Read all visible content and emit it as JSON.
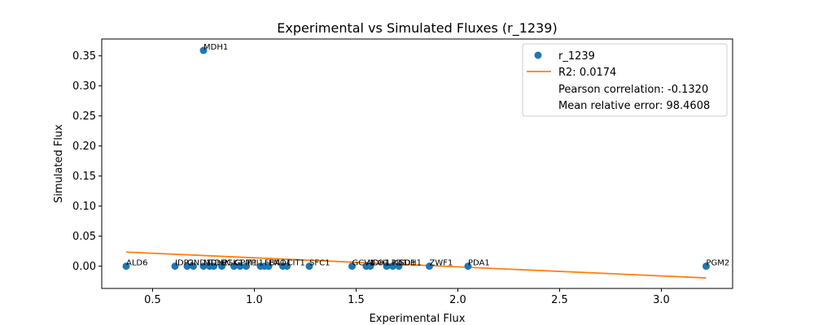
{
  "chart_data": {
    "type": "scatter",
    "title": "Experimental vs Simulated Fluxes (r_1239)",
    "xlabel": "Experimental Flux",
    "ylabel": "Simulated Flux",
    "xlim": [
      0.25,
      3.35
    ],
    "ylim": [
      -0.037,
      0.378
    ],
    "xticks": [
      0.5,
      1.0,
      1.5,
      2.0,
      2.5,
      3.0
    ],
    "xtick_labels": [
      "0.5",
      "1.0",
      "1.5",
      "2.0",
      "2.5",
      "3.0"
    ],
    "yticks": [
      0.0,
      0.05,
      0.1,
      0.15,
      0.2,
      0.25,
      0.3,
      0.35
    ],
    "ytick_labels": [
      "0.00",
      "0.05",
      "0.10",
      "0.15",
      "0.20",
      "0.25",
      "0.30",
      "0.35"
    ],
    "grid": false,
    "legend_position": "top-right",
    "colors": {
      "scatter": "#1f77b4",
      "fit": "#ff7f0e"
    },
    "series": [
      {
        "name": "r_1239",
        "kind": "scatter",
        "points": [
          {
            "x": 0.37,
            "y": 0.0,
            "label": "ALD6"
          },
          {
            "x": 0.61,
            "y": 0.0,
            "label": "IDP2"
          },
          {
            "x": 0.67,
            "y": 0.0,
            "label": "GND1"
          },
          {
            "x": 0.7,
            "y": 0.0,
            "label": ""
          },
          {
            "x": 0.75,
            "y": 0.359,
            "label": "MDH1"
          },
          {
            "x": 0.75,
            "y": 0.0,
            "label": "MDH2"
          },
          {
            "x": 0.78,
            "y": 0.0,
            "label": "TDH1"
          },
          {
            "x": 0.8,
            "y": 0.0,
            "label": ""
          },
          {
            "x": 0.84,
            "y": 0.0,
            "label": "PGK1"
          },
          {
            "x": 0.9,
            "y": 0.0,
            "label": "GPM1"
          },
          {
            "x": 0.93,
            "y": 0.0,
            "label": ""
          },
          {
            "x": 0.96,
            "y": 0.0,
            "label": "TPI1"
          },
          {
            "x": 1.03,
            "y": 0.0,
            "label": ""
          },
          {
            "x": 1.05,
            "y": 0.0,
            "label": "FBA1"
          },
          {
            "x": 1.07,
            "y": 0.0,
            "label": "ENO1"
          },
          {
            "x": 1.14,
            "y": 0.0,
            "label": ""
          },
          {
            "x": 1.16,
            "y": 0.0,
            "label": "CIT1"
          },
          {
            "x": 1.27,
            "y": 0.0,
            "label": "SFC1"
          },
          {
            "x": 1.48,
            "y": 0.0,
            "label": "GCV1"
          },
          {
            "x": 1.55,
            "y": 0.0,
            "label": "ACO1"
          },
          {
            "x": 1.57,
            "y": 0.0,
            "label": "IDH1"
          },
          {
            "x": 1.65,
            "y": 0.0,
            "label": "LPD1"
          },
          {
            "x": 1.68,
            "y": 0.0,
            "label": "KGD1"
          },
          {
            "x": 1.71,
            "y": 0.0,
            "label": "SDH1"
          },
          {
            "x": 1.86,
            "y": 0.0,
            "label": "ZWF1"
          },
          {
            "x": 2.05,
            "y": 0.0,
            "label": "PDA1"
          },
          {
            "x": 3.22,
            "y": 0.0,
            "label": "PGM2"
          }
        ]
      },
      {
        "name": "R2: 0.0174",
        "kind": "line",
        "points": [
          {
            "x": 0.37,
            "y": 0.0235
          },
          {
            "x": 3.22,
            "y": -0.0195
          }
        ]
      }
    ],
    "legend": [
      {
        "kind": "marker",
        "text": "r_1239"
      },
      {
        "kind": "line",
        "text": "R2: 0.0174"
      },
      {
        "kind": "none",
        "text": "Pearson correlation: -0.1320"
      },
      {
        "kind": "none",
        "text": "Mean relative error: 98.4608"
      }
    ]
  }
}
